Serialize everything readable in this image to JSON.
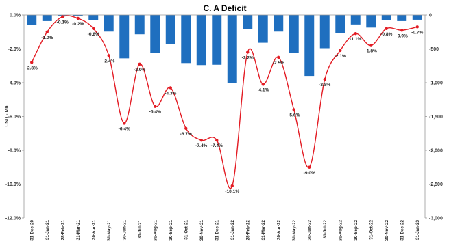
{
  "chart_data": {
    "type": "bar",
    "title": "C. A Deficit",
    "ylabel": "USD - Mn",
    "categories": [
      "31-Dec-20",
      "31-Jan-21",
      "28-Feb-21",
      "31-Mar-21",
      "30-Apr-21",
      "31-May-21",
      "30-Jun-21",
      "31-Jul-21",
      "31-Aug-21",
      "30-Sep-21",
      "31-Oct-21",
      "30-Nov-21",
      "31-Dec-21",
      "31-Jan-22",
      "28-Feb-22",
      "31-Mar-22",
      "30-Apr-22",
      "31-May-22",
      "30-Jun-22",
      "31-Jul-22",
      "31-Aug-22",
      "30-Sep-22",
      "31-Oct-22",
      "30-Nov-22",
      "31-Dec-22",
      "31-Jan-23"
    ],
    "series": [
      {
        "axis": "right",
        "type": "bar",
        "color": "#1f6fbf",
        "values": [
          -150,
          -90,
          -15,
          -20,
          -80,
          -245,
          -640,
          -285,
          -560,
          -430,
          -710,
          -740,
          -735,
          -1010,
          -205,
          -410,
          -245,
          -565,
          -900,
          -490,
          -270,
          -140,
          -185,
          -80,
          -90,
          -70
        ]
      },
      {
        "axis": "left",
        "type": "line",
        "color": "#e31b23",
        "labels": [
          "-2.8%",
          "-1.0%",
          "-0.1%",
          "-0.2%",
          "-0.8%",
          "-2.4%",
          "-6.4%",
          "-2.9%",
          "-5.4%",
          "-4.3%",
          "-6.7%",
          "-7.4%",
          "-7.4%",
          "-10.1%",
          "-2.2%",
          "-4.1%",
          "-2.5%",
          "-5.6%",
          "-9.0%",
          "-3.8%",
          "-2.1%",
          "-1.1%",
          "-1.8%",
          "-0.8%",
          "-0.9%",
          "-0.7%"
        ],
        "values": [
          -2.8,
          -1.0,
          -0.1,
          -0.2,
          -0.8,
          -2.4,
          -6.4,
          -2.9,
          -5.4,
          -4.3,
          -6.7,
          -7.4,
          -7.4,
          -10.1,
          -2.2,
          -4.1,
          -2.5,
          -5.6,
          -9.0,
          -3.8,
          -2.1,
          -1.1,
          -1.8,
          -0.8,
          -0.9,
          -0.7
        ]
      }
    ],
    "y_left": {
      "min": -12,
      "max": 0,
      "ticks": [
        "0.0%",
        "-2.0%",
        "-4.0%",
        "-6.0%",
        "-8.0%",
        "-10.0%",
        "-12.0%"
      ]
    },
    "y_right": {
      "min": -3000,
      "max": 0,
      "ticks": [
        "0",
        "-500",
        "-1,000",
        "-1,500",
        "-2,000",
        "-2,500",
        "-3,000"
      ]
    },
    "grid": false,
    "legend": "none"
  }
}
